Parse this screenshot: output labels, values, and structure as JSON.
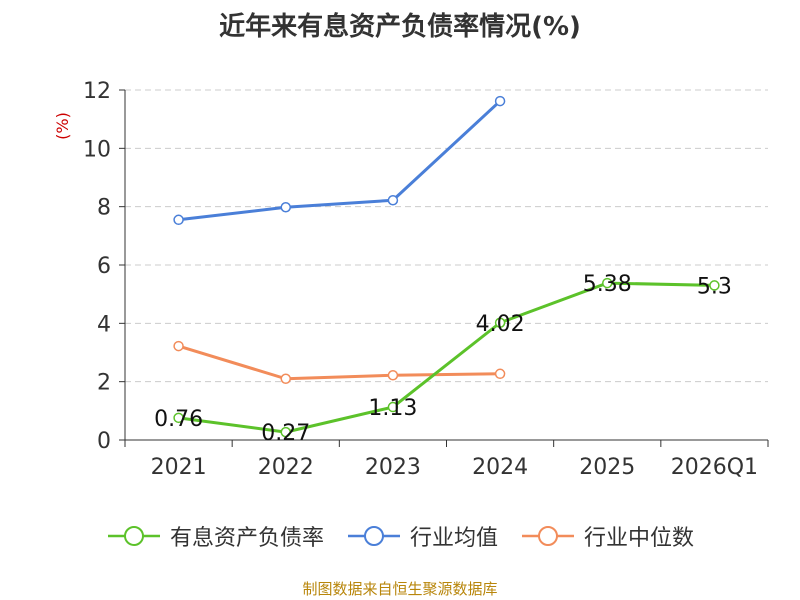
{
  "title": "近年来有息资产负债率情况(%)",
  "source": "制图数据来自恒生聚源数据库",
  "chart_data": {
    "type": "line",
    "title": "近年来有息资产负债率情况(%)",
    "ylabel": "(%)",
    "ylim": [
      0,
      12
    ],
    "yticks": [
      0,
      2,
      4,
      6,
      8,
      10,
      12
    ],
    "grid": true,
    "legend_position": "bottom",
    "categories": [
      "2021",
      "2022",
      "2023",
      "2024",
      "2025",
      "2026Q1"
    ],
    "series": [
      {
        "name": "有息资产负债率",
        "color": "#5cc22a",
        "values": [
          0.76,
          0.27,
          1.13,
          4.02,
          5.38,
          5.3
        ],
        "labels": [
          "0.76",
          "0.27",
          "1.13",
          "4.02",
          "5.38",
          "5.3"
        ]
      },
      {
        "name": "行业均值",
        "color": "#4a7fd8",
        "values": [
          7.55,
          7.98,
          8.22,
          11.62,
          null,
          null
        ]
      },
      {
        "name": "行业中位数",
        "color": "#f28c5a",
        "values": [
          3.22,
          2.1,
          2.22,
          2.27,
          null,
          null
        ]
      }
    ]
  }
}
